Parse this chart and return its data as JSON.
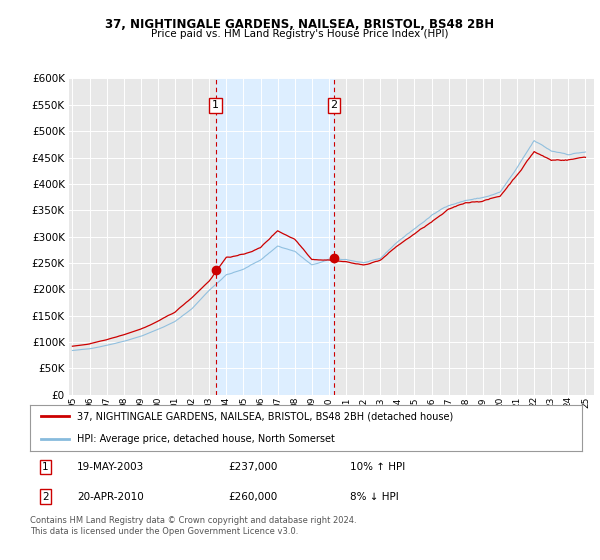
{
  "title": "37, NIGHTINGALE GARDENS, NAILSEA, BRISTOL, BS48 2BH",
  "subtitle": "Price paid vs. HM Land Registry's House Price Index (HPI)",
  "legend_line1": "37, NIGHTINGALE GARDENS, NAILSEA, BRISTOL, BS48 2BH (detached house)",
  "legend_line2": "HPI: Average price, detached house, North Somerset",
  "footnote": "Contains HM Land Registry data © Crown copyright and database right 2024.\nThis data is licensed under the Open Government Licence v3.0.",
  "sale1_date": "19-MAY-2003",
  "sale1_price": "£237,000",
  "sale1_hpi": "10% ↑ HPI",
  "sale1_year": 2003.37,
  "sale1_value": 237000,
  "sale2_date": "20-APR-2010",
  "sale2_price": "£260,000",
  "sale2_hpi": "8% ↓ HPI",
  "sale2_year": 2010.29,
  "sale2_value": 260000,
  "ylim": [
    0,
    600000
  ],
  "yticks": [
    0,
    50000,
    100000,
    150000,
    200000,
    250000,
    300000,
    350000,
    400000,
    450000,
    500000,
    550000,
    600000
  ],
  "xlim": [
    1994.8,
    2025.5
  ],
  "background_color": "#ffffff",
  "plot_bg_color": "#e8e8e8",
  "shade_color": "#ddeeff",
  "grid_color": "#ffffff",
  "red_color": "#cc0000",
  "blue_color": "#88bbdd"
}
